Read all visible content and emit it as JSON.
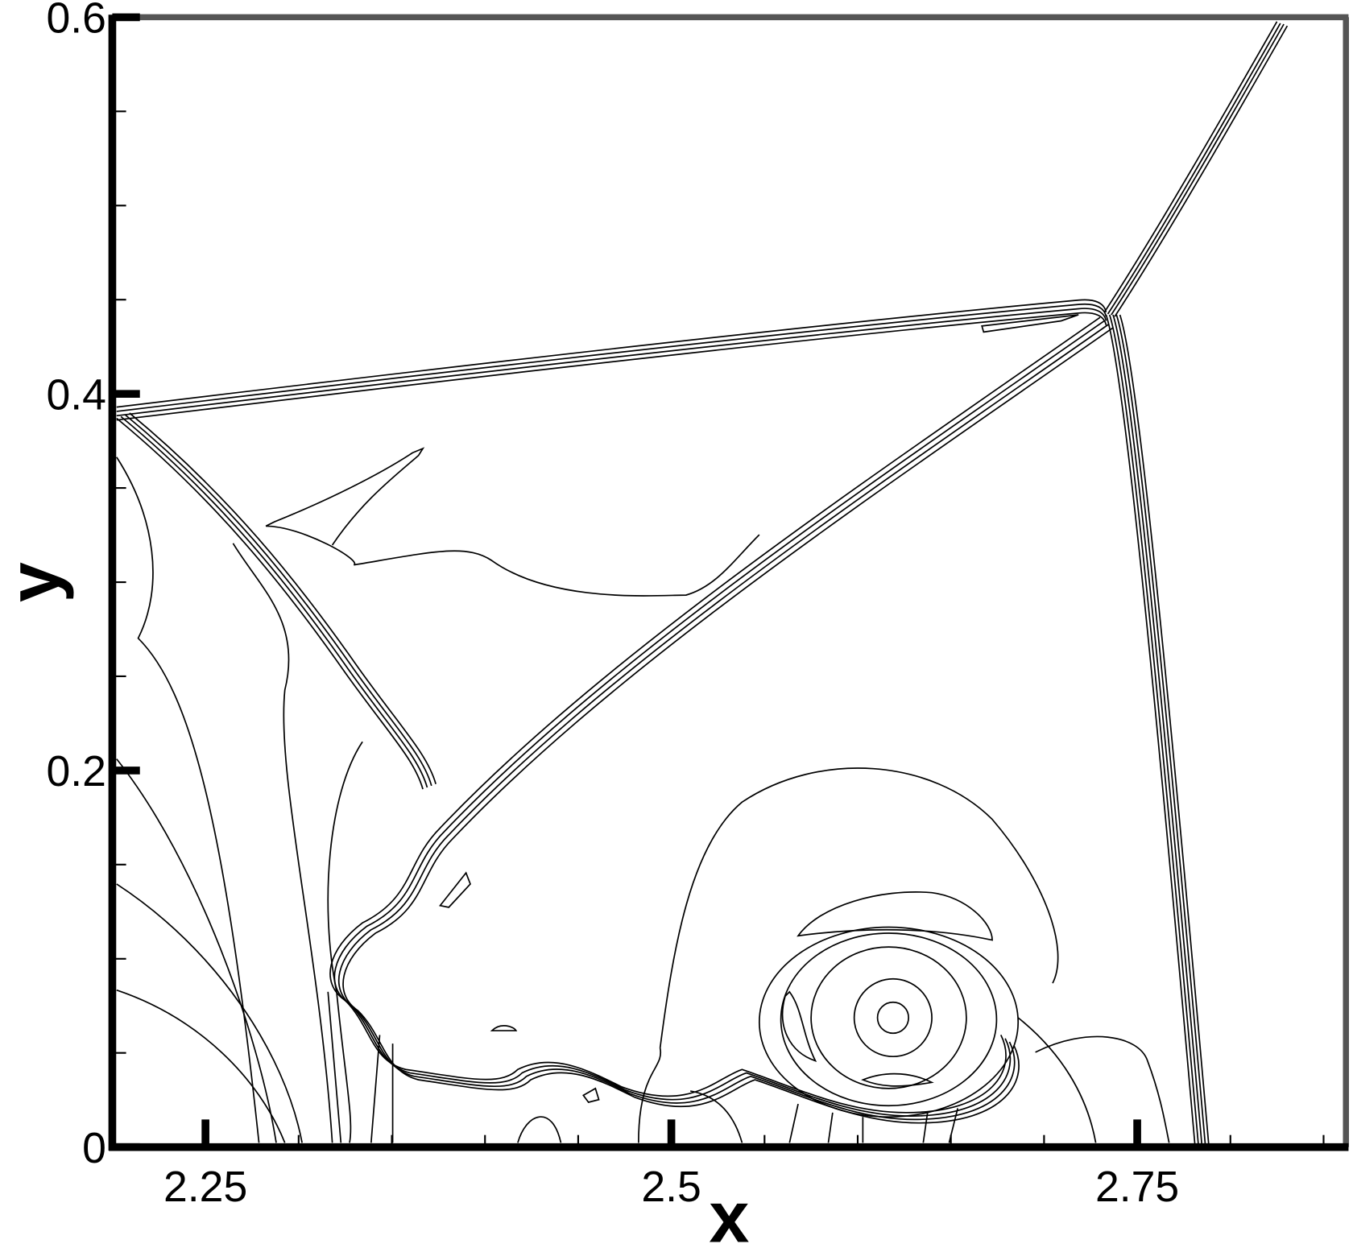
{
  "chart_data": {
    "type": "contour",
    "xlabel": "x",
    "ylabel": "y",
    "xlim": [
      2.2,
      2.862
    ],
    "ylim": [
      0,
      0.6
    ],
    "xticks": [
      2.25,
      2.5,
      2.75
    ],
    "yticks": [
      0,
      0.2,
      0.4,
      0.6
    ],
    "xticks_minor": [
      2.3,
      2.35,
      2.4,
      2.45,
      2.55,
      2.6,
      2.65,
      2.7,
      2.8,
      2.85
    ],
    "yticks_minor": [
      0.05,
      0.1,
      0.15,
      0.25,
      0.3,
      0.35,
      0.45,
      0.5,
      0.55
    ],
    "line_color": "#000000"
  }
}
